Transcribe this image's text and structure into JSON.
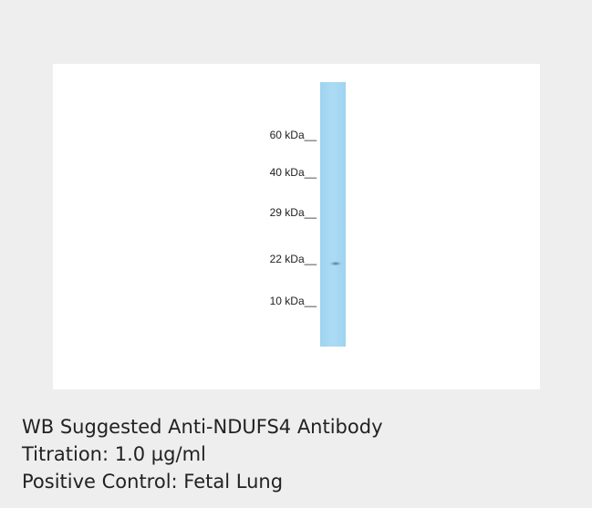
{
  "image": {
    "markers": [
      "60 kDa__",
      "40 kDa__",
      "29 kDa__",
      "22 kDa__",
      "10 kDa__"
    ]
  },
  "caption": {
    "lines": [
      "WB Suggested Anti-NDUFS4 Antibody",
      "Titration: 1.0 µg/ml",
      "Positive Control: Fetal Lung"
    ]
  }
}
